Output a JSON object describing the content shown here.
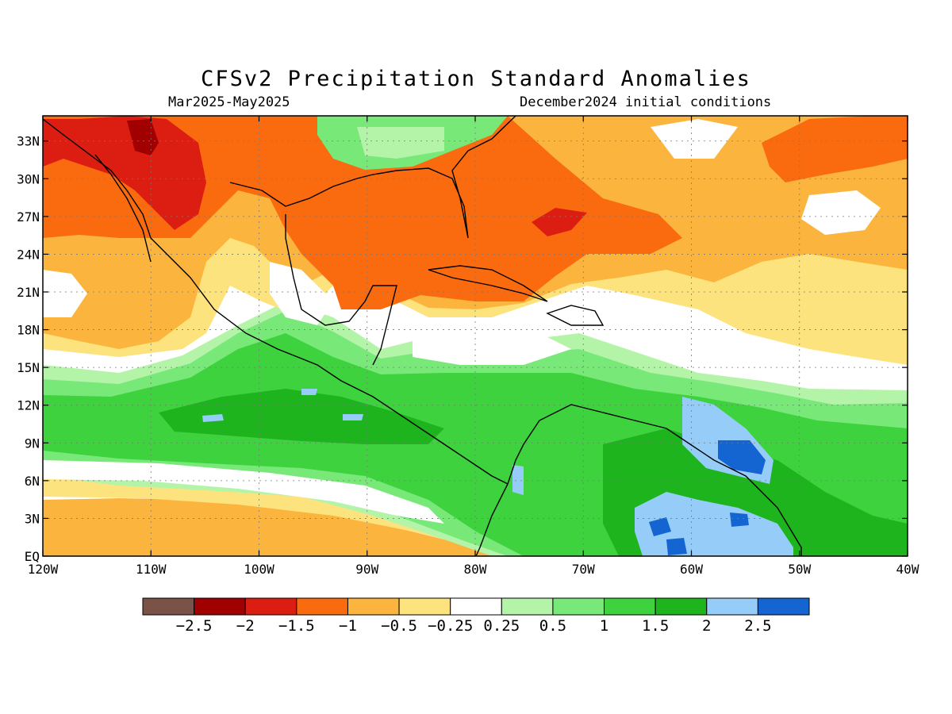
{
  "header": {
    "title": "CFSv2 Precipitation Standard Anomalies",
    "period": "Mar2025-May2025",
    "init": "December2024 initial conditions"
  },
  "map": {
    "lat_labels": [
      "33N",
      "30N",
      "27N",
      "24N",
      "21N",
      "18N",
      "15N",
      "12N",
      "9N",
      "6N",
      "3N",
      "EQ"
    ],
    "lat_values": [
      33,
      30,
      27,
      24,
      21,
      18,
      15,
      12,
      9,
      6,
      3,
      0
    ],
    "lon_labels": [
      "120W",
      "110W",
      "100W",
      "90W",
      "80W",
      "70W",
      "60W",
      "50W",
      "40W"
    ],
    "lon_values": [
      -120,
      -110,
      -100,
      -90,
      -80,
      -70,
      -60,
      -50,
      -40
    ],
    "lon_range": [
      -120,
      -40
    ],
    "lat_range": [
      0,
      35
    ]
  },
  "colorbar": {
    "colors": [
      "#7a5248",
      "#a00000",
      "#dc1e12",
      "#fa6a0f",
      "#fbb53e",
      "#fde37e",
      "#ffffff",
      "#b4f4a8",
      "#78e878",
      "#3ed23e",
      "#1eb41e",
      "#96cdf8",
      "#1464d2"
    ],
    "labels": [
      "-2.5",
      "-2",
      "-1.5",
      "-1",
      "-0.5",
      "-0.25",
      "0.25",
      "0.5",
      "1",
      "1.5",
      "2",
      "2.5"
    ]
  }
}
